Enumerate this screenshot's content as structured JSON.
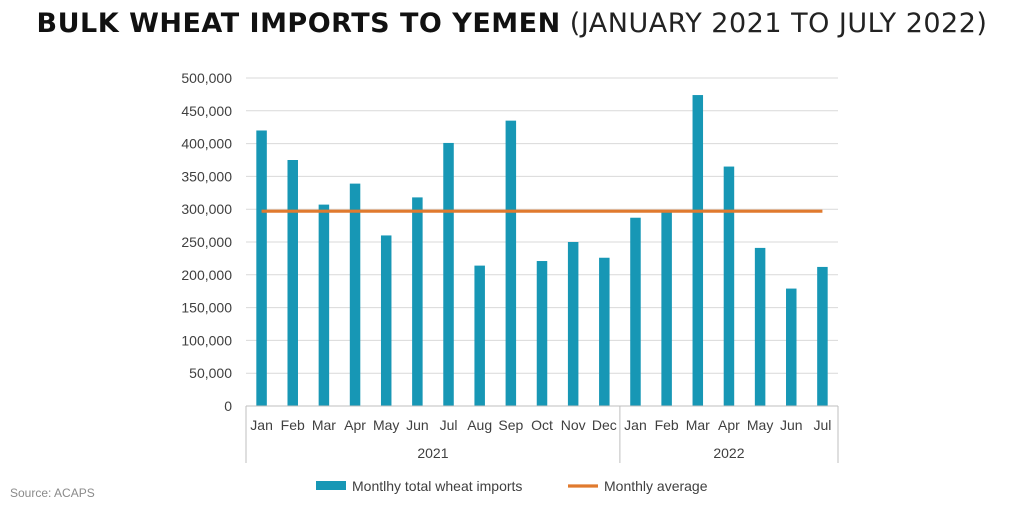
{
  "header": {
    "title_bold": "BULK WHEAT IMPORTS TO YEMEN",
    "title_light": "(JANUARY 2021 TO JULY 2022)"
  },
  "source": "Source: ACAPS",
  "colors": {
    "bar": "#1797b5",
    "average": "#e07a2e",
    "grid": "#d9d9d9",
    "axis": "#bfbfbf",
    "text": "#404040"
  },
  "chart_data": {
    "type": "bar",
    "title": "BULK WHEAT IMPORTS TO YEMEN (JANUARY 2021 TO JULY 2022)",
    "xlabel": "",
    "ylabel": "",
    "ylim": [
      0,
      500000
    ],
    "y_ticks": [
      0,
      50000,
      100000,
      150000,
      200000,
      250000,
      300000,
      350000,
      400000,
      450000,
      500000
    ],
    "y_tick_labels": [
      "0",
      "50,000",
      "100,000",
      "150,000",
      "200,000",
      "250,000",
      "300,000",
      "350,000",
      "400,000",
      "450,000",
      "500,000"
    ],
    "categories": [
      "Jan",
      "Feb",
      "Mar",
      "Apr",
      "May",
      "Jun",
      "Jul",
      "Aug",
      "Sep",
      "Oct",
      "Nov",
      "Dec",
      "Jan",
      "Feb",
      "Mar",
      "Apr",
      "May",
      "Jun",
      "Jul"
    ],
    "groups": [
      {
        "label": "2021",
        "count": 12
      },
      {
        "label": "2022",
        "count": 7
      }
    ],
    "series": [
      {
        "name": "Montlhy total wheat imports",
        "type": "bar",
        "values": [
          420000,
          375000,
          307000,
          339000,
          260000,
          318000,
          401000,
          214000,
          435000,
          221000,
          250000,
          226000,
          287000,
          296000,
          474000,
          365000,
          241000,
          179000,
          212000
        ]
      },
      {
        "name": "Monthly average",
        "type": "line",
        "values": [
          297000,
          297000,
          297000,
          297000,
          297000,
          297000,
          297000,
          297000,
          297000,
          297000,
          297000,
          297000,
          297000,
          297000,
          297000,
          297000,
          297000,
          297000,
          297000
        ]
      }
    ],
    "legend_position": "bottom",
    "grid": true
  }
}
